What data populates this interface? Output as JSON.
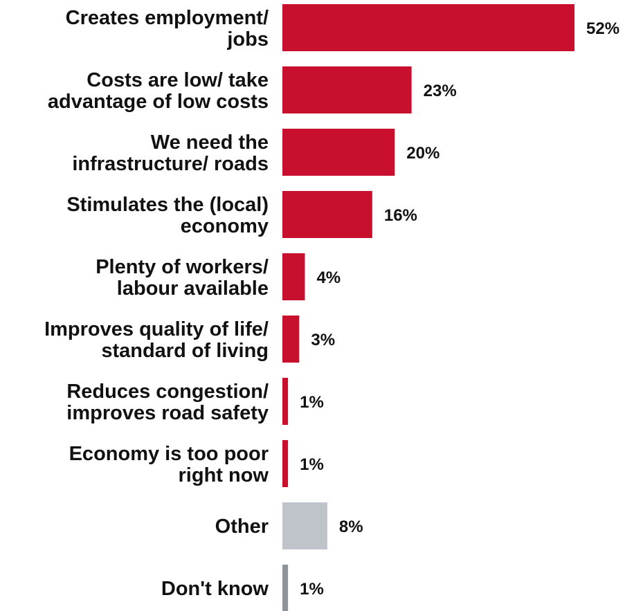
{
  "chart_data": {
    "type": "bar",
    "orientation": "horizontal",
    "title": "",
    "xlabel": "",
    "ylabel": "",
    "xlim": [
      0,
      52
    ],
    "grid": false,
    "legend": "none",
    "value_suffix": "%",
    "categories": [
      [
        "Creates employment/",
        "jobs"
      ],
      [
        "Costs are low/ take",
        "advantage of low costs"
      ],
      [
        "We need the",
        "infrastructure/ roads"
      ],
      [
        "Stimulates the (local)",
        "economy"
      ],
      [
        "Plenty of workers/",
        "labour available"
      ],
      [
        "Improves quality of life/",
        "standard of living"
      ],
      [
        "Reduces congestion/",
        "improves road safety"
      ],
      [
        "Economy is too poor",
        "right now"
      ],
      [
        "Other"
      ],
      [
        "Don't know"
      ]
    ],
    "values": [
      52,
      23,
      20,
      16,
      4,
      3,
      1,
      1,
      8,
      1
    ],
    "value_labels": [
      "52%",
      "23%",
      "20%",
      "16%",
      "4%",
      "3%",
      "1%",
      "1%",
      "8%",
      "1%"
    ],
    "colors": [
      "#c8102e",
      "#c8102e",
      "#c8102e",
      "#c8102e",
      "#c8102e",
      "#c8102e",
      "#c8102e",
      "#c8102e",
      "#bfc4ca",
      "#8e949a"
    ]
  }
}
